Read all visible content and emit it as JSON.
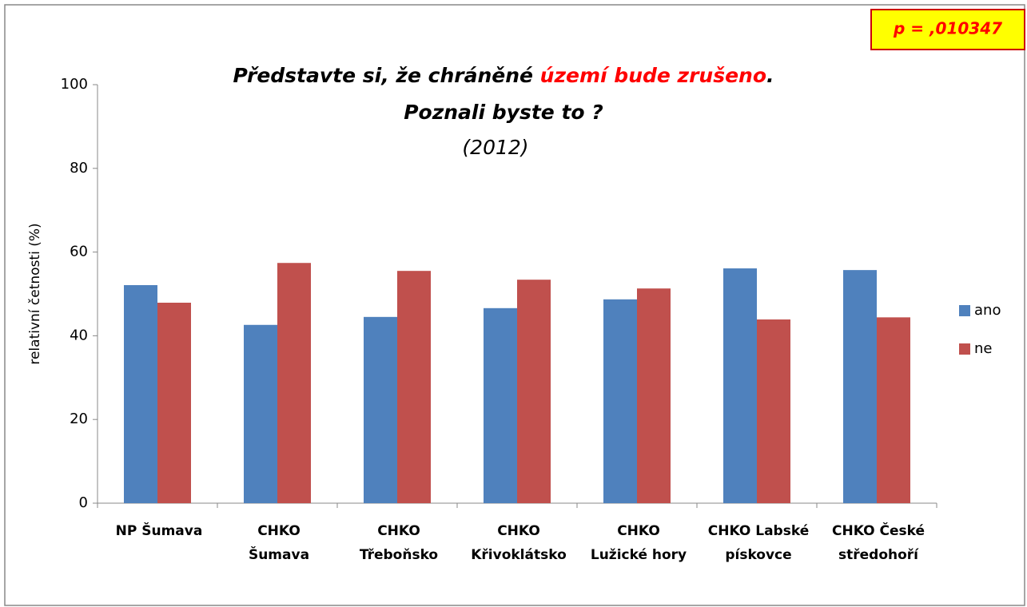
{
  "chart_data": {
    "type": "bar",
    "title": [
      {
        "text": "Představte si, že chráněné ",
        "color": "#000000"
      },
      {
        "text": "území bude zrušeno",
        "color": "#ff0000"
      },
      {
        "text": ".",
        "color": "#000000"
      }
    ],
    "subtitle": "Poznali byste to ?",
    "year": "(2012)",
    "annotation": "p = ,010347",
    "y_label": "relativní četnosti (%)",
    "categories": [
      [
        "NP Šumava"
      ],
      [
        "CHKO",
        "Šumava"
      ],
      [
        "CHKO",
        "Třeboňsko"
      ],
      [
        "CHKO",
        "Křivoklátsko"
      ],
      [
        "CHKO",
        "Lužické hory"
      ],
      [
        "CHKO Labské",
        "pískovce"
      ],
      [
        "CHKO České",
        "středohoří"
      ]
    ],
    "series": [
      {
        "name": "ano",
        "color": "#4f81bd",
        "values": [
          52.1,
          42.6,
          44.5,
          46.6,
          48.7,
          56.1,
          55.7
        ]
      },
      {
        "name": "ne",
        "color": "#c0504d",
        "values": [
          47.9,
          57.4,
          55.5,
          53.4,
          51.3,
          43.9,
          44.4
        ]
      }
    ],
    "ylim": [
      0,
      100
    ],
    "yticks": [
      0,
      20,
      40,
      60,
      80,
      100
    ],
    "grid": false,
    "legend": "right"
  }
}
